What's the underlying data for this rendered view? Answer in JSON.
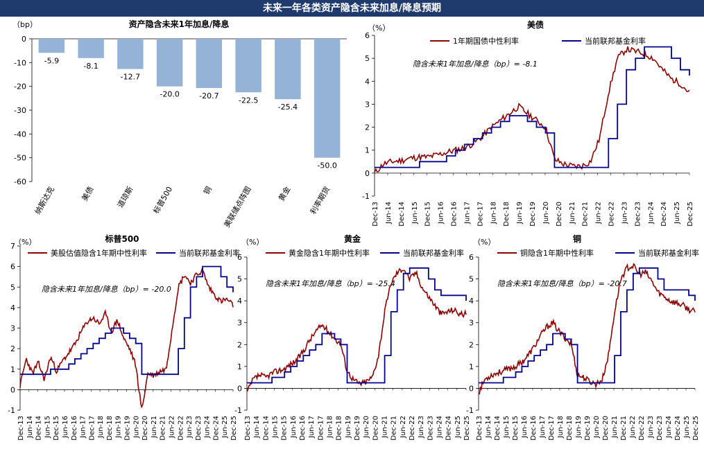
{
  "page_title": "未来一年各类资产隐含未来加息/降息预期",
  "colors": {
    "banner": "#1f3b6e",
    "bar": "#95b3d7",
    "implied_line": "#8b0000",
    "fed_line": "#00008b"
  },
  "chart_data": [
    {
      "type": "bar",
      "title": "资产隐含未来1年加息/降息",
      "unit_label": "（bp）",
      "categories": [
        "纳斯达克",
        "美债",
        "道琼斯",
        "标普500",
        "铜",
        "美联储点阵图",
        "黄金",
        "利率期货"
      ],
      "values": [
        -5.9,
        -8.1,
        -12.7,
        -20.0,
        -20.7,
        -22.5,
        -25.4,
        -50.0
      ],
      "value_labels": [
        "-5.9",
        "-8.1",
        "-12.7",
        "-20.0",
        "-20.7",
        "-22.5",
        "-25.4",
        "-50.0"
      ],
      "ylim": [
        -60,
        0
      ],
      "yticks": [
        0,
        -10,
        -20,
        -30,
        -40,
        -50,
        -60
      ]
    },
    {
      "type": "line",
      "title": "美债",
      "unit_label": "（%）",
      "annotation": "隐含未来1年加息/降息（bp）= -8.1",
      "ylim": [
        -1,
        6
      ],
      "yticks": [
        6,
        5,
        4,
        3,
        2,
        1,
        0,
        -1
      ],
      "x_tick_labels": [
        "Dec-13",
        "Jun-14",
        "Dec-14",
        "Jun-15",
        "Dec-15",
        "Jun-16",
        "Dec-16",
        "Jun-17",
        "Dec-17",
        "Jun-18",
        "Dec-18",
        "Jun-19",
        "Dec-19",
        "Jun-20",
        "Dec-20",
        "Jun-21",
        "Dec-21",
        "Jun-22",
        "Dec-22",
        "Jun-23",
        "Dec-23",
        "Jun-24",
        "Dec-24",
        "Jun-25",
        "Dec-25"
      ],
      "series": [
        {
          "name": "1年期国债中性利率",
          "color": "#8b0000",
          "values": [
            0.0,
            0.4,
            0.5,
            0.55,
            0.65,
            0.7,
            0.7,
            0.8,
            0.9,
            1.0,
            1.1,
            1.3,
            1.6,
            2.0,
            2.3,
            2.6,
            2.9,
            2.6,
            2.3,
            2.0,
            0.6,
            0.4,
            0.3,
            0.3,
            0.5,
            1.5,
            3.5,
            5.0,
            5.4,
            5.3,
            5.2,
            5.0,
            4.5,
            4.1,
            3.9,
            3.5
          ]
        },
        {
          "name": "当前联邦基金利率",
          "color": "#00008b",
          "values": [
            0.25,
            0.25,
            0.25,
            0.25,
            0.25,
            0.5,
            0.5,
            0.5,
            0.75,
            1.0,
            1.25,
            1.5,
            1.75,
            2.0,
            2.25,
            2.5,
            2.5,
            2.25,
            2.0,
            1.75,
            0.25,
            0.25,
            0.25,
            0.25,
            0.25,
            0.25,
            1.5,
            3.0,
            4.5,
            5.0,
            5.5,
            5.5,
            5.5,
            5.0,
            4.5,
            4.25
          ]
        }
      ]
    },
    {
      "type": "line",
      "title": "标普500",
      "unit_label": "（%）",
      "annotation": "隐含未来1年加息/降息（bp）= -20.0",
      "ylim": [
        -1,
        7
      ],
      "yticks": [
        7,
        6,
        5,
        4,
        3,
        2,
        1,
        0,
        -1
      ],
      "x_tick_labels": [
        "Dec-13",
        "Jun-14",
        "Dec-14",
        "Jun-15",
        "Dec-15",
        "Jun-16",
        "Dec-16",
        "Jun-17",
        "Dec-17",
        "Jun-18",
        "Dec-18",
        "Jun-19",
        "Dec-19",
        "Jun-20",
        "Dec-20",
        "Jun-21",
        "Dec-21",
        "Jun-22",
        "Dec-22",
        "Jun-23",
        "Dec-23",
        "Jun-24",
        "Dec-24",
        "Jun-25",
        "Dec-25"
      ],
      "series": [
        {
          "name": "美股估值隐含1年期中性利率",
          "color": "#8b0000",
          "values": [
            0.2,
            1.5,
            0.8,
            1.3,
            0.5,
            1.6,
            0.9,
            1.4,
            1.8,
            2.2,
            2.8,
            3.3,
            3.5,
            3.2,
            3.7,
            2.8,
            3.4,
            2.5,
            2.0,
            1.2,
            -1.0,
            0.8,
            0.7,
            0.9,
            1.0,
            3.0,
            5.0,
            5.6,
            5.2,
            5.6,
            5.8,
            5.0,
            4.6,
            4.3,
            4.4,
            4.1
          ]
        },
        {
          "name": "当前联邦基金利率",
          "color": "#00008b",
          "values": [
            0.75,
            0.75,
            0.75,
            0.75,
            0.75,
            1.0,
            1.0,
            1.0,
            1.25,
            1.5,
            1.75,
            2.0,
            2.25,
            2.5,
            2.75,
            3.0,
            3.0,
            2.75,
            2.5,
            2.25,
            0.75,
            0.75,
            0.75,
            0.75,
            0.75,
            0.75,
            2.0,
            3.5,
            5.0,
            5.5,
            6.0,
            6.0,
            6.0,
            5.5,
            5.0,
            4.75
          ]
        }
      ]
    },
    {
      "type": "line",
      "title": "黄金",
      "unit_label": "（%）",
      "annotation": "隐含未来1年加息/降息（bp）= -25.4",
      "ylim": [
        -1,
        6
      ],
      "yticks": [
        6,
        5,
        4,
        3,
        2,
        1,
        0,
        -1
      ],
      "x_tick_labels": [
        "Dec-13",
        "Jun-14",
        "Dec-14",
        "Jun-15",
        "Dec-15",
        "Jun-16",
        "Dec-16",
        "Jun-17",
        "Dec-17",
        "Jun-18",
        "Dec-18",
        "Jun-19",
        "Dec-19",
        "Jun-20",
        "Dec-20",
        "Jun-21",
        "Dec-21",
        "Jun-22",
        "Dec-22",
        "Jun-23",
        "Dec-23",
        "Jun-24",
        "Dec-24",
        "Jun-25",
        "Dec-25"
      ],
      "series": [
        {
          "name": "黄金隐含1年期中性利率",
          "color": "#8b0000",
          "values": [
            -0.2,
            0.4,
            0.6,
            0.5,
            0.7,
            0.8,
            0.9,
            1.1,
            1.3,
            1.7,
            2.2,
            2.6,
            2.9,
            2.6,
            2.3,
            2.0,
            0.8,
            0.4,
            0.2,
            0.3,
            0.5,
            1.5,
            3.5,
            4.8,
            5.3,
            5.5,
            5.0,
            5.3,
            4.6,
            4.2,
            3.8,
            3.4,
            3.5,
            3.6,
            3.4,
            3.4
          ]
        },
        {
          "name": "当前联邦基金利率",
          "color": "#00008b",
          "values": [
            0.25,
            0.25,
            0.25,
            0.25,
            0.5,
            0.5,
            0.75,
            1.0,
            1.25,
            1.5,
            1.75,
            2.0,
            2.5,
            2.5,
            2.25,
            2.0,
            0.25,
            0.25,
            0.25,
            0.25,
            0.25,
            0.25,
            1.5,
            3.5,
            4.5,
            5.25,
            5.5,
            5.5,
            5.5,
            5.0,
            4.5,
            4.25,
            4.25,
            4.25,
            4.25,
            4.0
          ]
        }
      ]
    },
    {
      "type": "line",
      "title": "铜",
      "unit_label": "（%）",
      "annotation": "隐含未来1年加息/降息（bp）= -20.7",
      "ylim": [
        -1,
        6
      ],
      "yticks": [
        6,
        5,
        4,
        3,
        2,
        1,
        0,
        -1
      ],
      "x_tick_labels": [
        "Dec-13",
        "Jun-14",
        "Dec-14",
        "Jun-15",
        "Dec-15",
        "Jun-16",
        "Dec-16",
        "Jun-17",
        "Dec-17",
        "Jun-18",
        "Dec-18",
        "Jun-19",
        "Dec-19",
        "Jun-20",
        "Dec-20",
        "Jun-21",
        "Dec-21",
        "Jun-22",
        "Dec-22",
        "Jun-23",
        "Dec-23",
        "Jun-24",
        "Dec-24",
        "Jun-25",
        "Dec-25"
      ],
      "series": [
        {
          "name": "铜隐含1年期中性利率",
          "color": "#8b0000",
          "values": [
            -0.2,
            0.4,
            0.6,
            0.7,
            0.8,
            0.9,
            1.0,
            1.2,
            1.5,
            1.9,
            2.4,
            2.8,
            3.0,
            2.6,
            2.3,
            2.0,
            0.6,
            0.5,
            0.3,
            0.2,
            0.4,
            1.5,
            3.5,
            5.0,
            5.5,
            5.6,
            5.2,
            5.3,
            4.9,
            4.4,
            4.2,
            4.0,
            3.9,
            3.8,
            3.6,
            3.5
          ]
        },
        {
          "name": "当前联邦基金利率",
          "color": "#00008b",
          "values": [
            0.25,
            0.25,
            0.25,
            0.25,
            0.5,
            0.5,
            0.75,
            1.0,
            1.25,
            1.5,
            1.75,
            2.0,
            2.5,
            2.5,
            2.25,
            2.0,
            0.25,
            0.25,
            0.25,
            0.25,
            0.25,
            0.25,
            1.5,
            3.5,
            4.5,
            5.25,
            5.5,
            5.5,
            5.5,
            5.0,
            4.5,
            4.5,
            4.5,
            4.5,
            4.25,
            4.0
          ]
        }
      ]
    }
  ]
}
